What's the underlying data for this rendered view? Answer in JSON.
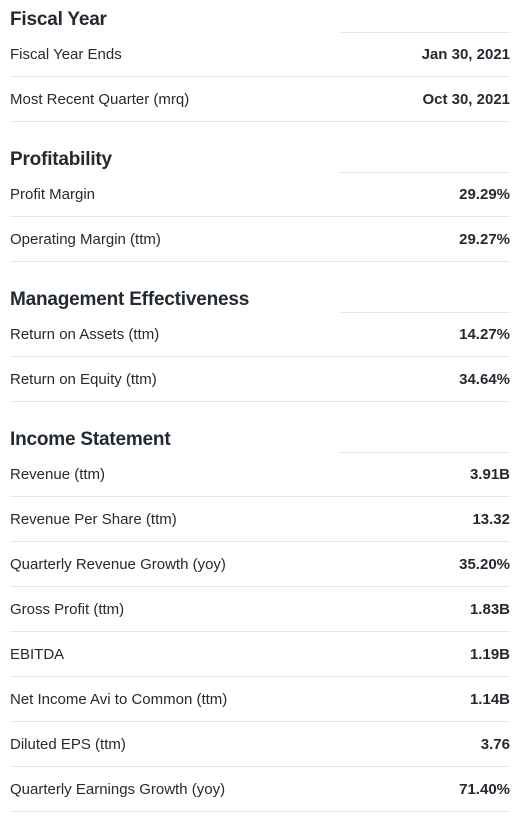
{
  "sections": [
    {
      "title": "Fiscal Year",
      "rows": [
        {
          "label": "Fiscal Year Ends",
          "value": "Jan 30, 2021"
        },
        {
          "label": "Most Recent Quarter (mrq)",
          "value": "Oct 30, 2021"
        }
      ]
    },
    {
      "title": "Profitability",
      "rows": [
        {
          "label": "Profit Margin",
          "value": "29.29%"
        },
        {
          "label": "Operating Margin (ttm)",
          "value": "29.27%"
        }
      ]
    },
    {
      "title": "Management Effectiveness",
      "rows": [
        {
          "label": "Return on Assets (ttm)",
          "value": "14.27%"
        },
        {
          "label": "Return on Equity (ttm)",
          "value": "34.64%"
        }
      ]
    },
    {
      "title": "Income Statement",
      "rows": [
        {
          "label": "Revenue (ttm)",
          "value": "3.91B"
        },
        {
          "label": "Revenue Per Share (ttm)",
          "value": "13.32"
        },
        {
          "label": "Quarterly Revenue Growth (yoy)",
          "value": "35.20%"
        },
        {
          "label": "Gross Profit (ttm)",
          "value": "1.83B"
        },
        {
          "label": "EBITDA",
          "value": "1.19B"
        },
        {
          "label": "Net Income Avi to Common (ttm)",
          "value": "1.14B"
        },
        {
          "label": "Diluted EPS (ttm)",
          "value": "3.76"
        },
        {
          "label": "Quarterly Earnings Growth (yoy)",
          "value": "71.40%"
        }
      ]
    }
  ]
}
